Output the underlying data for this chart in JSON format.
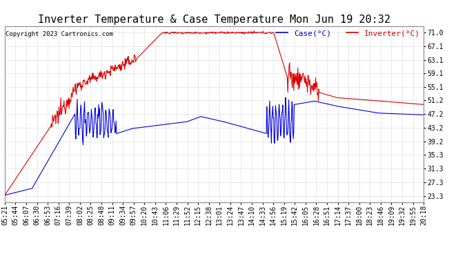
{
  "title": "Inverter Temperature & Case Temperature Mon Jun 19 20:32",
  "copyright": "Copyright 2023 Cartronics.com",
  "legend_case": "Case(°C)",
  "legend_inverter": "Inverter(°C)",
  "yticks": [
    23.3,
    27.3,
    31.3,
    35.3,
    39.2,
    43.2,
    47.2,
    51.2,
    55.1,
    59.1,
    63.1,
    67.1,
    71.0
  ],
  "ylim": [
    21.5,
    73.0
  ],
  "xtick_labels": [
    "05:21",
    "05:44",
    "06:07",
    "06:30",
    "06:53",
    "07:16",
    "07:39",
    "08:02",
    "08:25",
    "08:48",
    "09:11",
    "09:34",
    "09:57",
    "10:20",
    "10:43",
    "11:06",
    "11:29",
    "11:52",
    "12:15",
    "12:38",
    "13:01",
    "13:24",
    "13:47",
    "14:10",
    "14:33",
    "14:56",
    "15:19",
    "15:42",
    "16:05",
    "16:28",
    "16:51",
    "17:14",
    "17:37",
    "18:00",
    "18:23",
    "18:46",
    "19:09",
    "19:32",
    "19:55",
    "20:18"
  ],
  "background_color": "#ffffff",
  "plot_bg_color": "#ffffff",
  "grid_color": "#bbbbbb",
  "case_color": "#0000dd",
  "inverter_color": "#dd0000",
  "title_fontsize": 11,
  "axis_fontsize": 7,
  "copyright_fontsize": 6.5,
  "legend_fontsize": 8
}
